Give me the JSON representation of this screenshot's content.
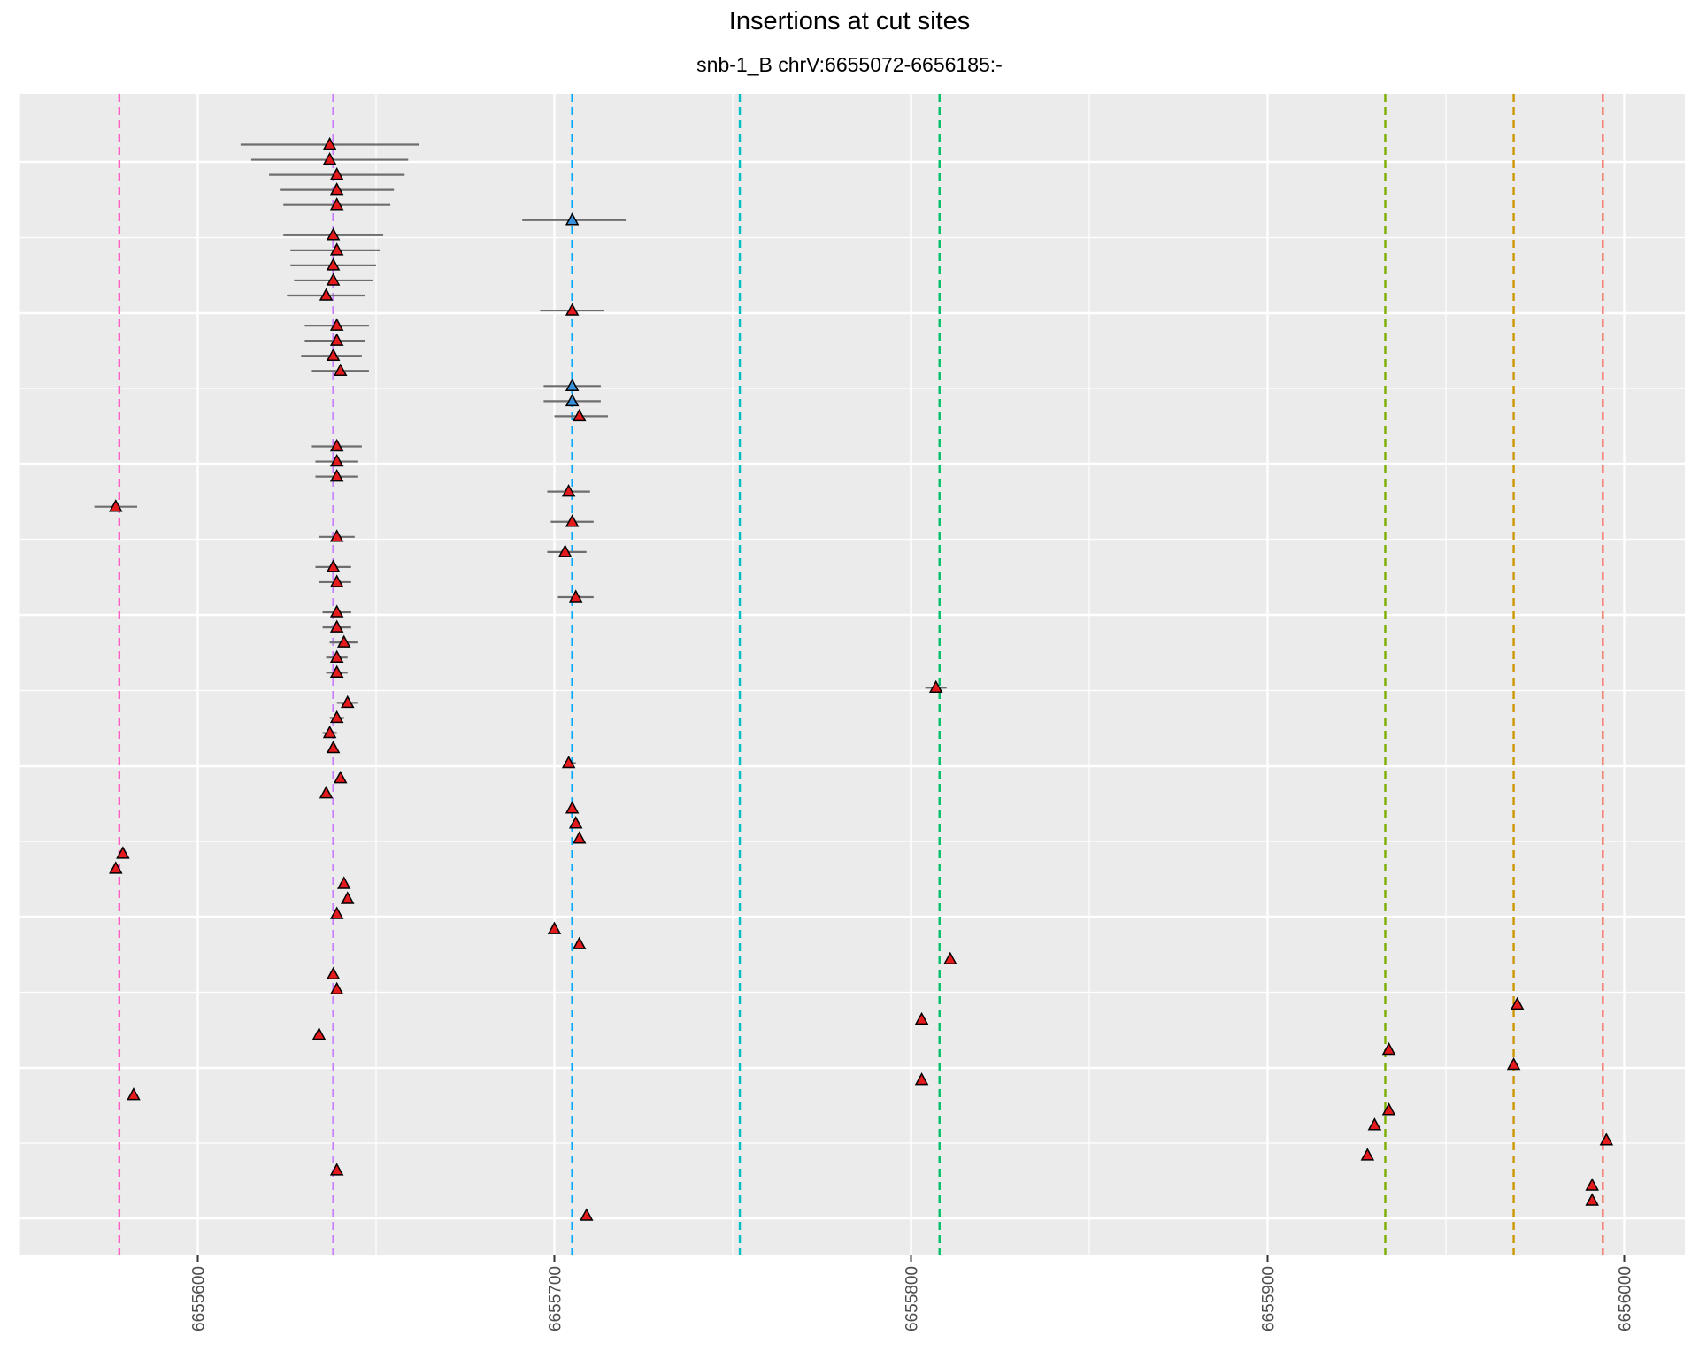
{
  "chart_data": {
    "type": "scatter",
    "title": "Insertions at cut sites",
    "subtitle": "snb-1_B chrV:6655072-6656185:-",
    "xlabel": "",
    "ylabel": "",
    "xlim": [
      6655550,
      6656017
    ],
    "x_ticks": [
      "6655600",
      "6655700",
      "6655800",
      "6655900",
      "6656000"
    ],
    "grid": true,
    "legend": "none",
    "panel_background": "#ebebeb",
    "grid_color": "#ffffff",
    "cut_sites": [
      {
        "x": 6655578,
        "color": "#ff61c3"
      },
      {
        "x": 6655638,
        "color": "#c77cff"
      },
      {
        "x": 6655705,
        "color": "#00a9ff"
      },
      {
        "x": 6655752,
        "color": "#00bfc4"
      },
      {
        "x": 6655808,
        "color": "#00be67"
      },
      {
        "x": 6655933,
        "color": "#7cae00"
      },
      {
        "x": 6655969,
        "color": "#cd9600"
      },
      {
        "x": 6655994,
        "color": "#f8766d"
      }
    ],
    "points": [
      {
        "row": 1,
        "x": 6655637,
        "lo": 6655612,
        "hi": 6655662,
        "color": "#e41a1c"
      },
      {
        "row": 2,
        "x": 6655637,
        "lo": 6655615,
        "hi": 6655659,
        "color": "#e41a1c"
      },
      {
        "row": 3,
        "x": 6655639,
        "lo": 6655620,
        "hi": 6655658,
        "color": "#e41a1c"
      },
      {
        "row": 4,
        "x": 6655639,
        "lo": 6655623,
        "hi": 6655655,
        "color": "#e41a1c"
      },
      {
        "row": 5,
        "x": 6655639,
        "lo": 6655624,
        "hi": 6655654,
        "color": "#e41a1c"
      },
      {
        "row": 6,
        "x": 6655705,
        "lo": 6655691,
        "hi": 6655720,
        "color": "#3a8fd9"
      },
      {
        "row": 7,
        "x": 6655638,
        "lo": 6655624,
        "hi": 6655652,
        "color": "#e41a1c"
      },
      {
        "row": 8,
        "x": 6655639,
        "lo": 6655626,
        "hi": 6655651,
        "color": "#e41a1c"
      },
      {
        "row": 9,
        "x": 6655638,
        "lo": 6655626,
        "hi": 6655650,
        "color": "#e41a1c"
      },
      {
        "row": 10,
        "x": 6655638,
        "lo": 6655627,
        "hi": 6655649,
        "color": "#e41a1c"
      },
      {
        "row": 11,
        "x": 6655636,
        "lo": 6655625,
        "hi": 6655647,
        "color": "#e41a1c"
      },
      {
        "row": 12,
        "x": 6655705,
        "lo": 6655696,
        "hi": 6655714,
        "color": "#e41a1c"
      },
      {
        "row": 13,
        "x": 6655639,
        "lo": 6655630,
        "hi": 6655648,
        "color": "#e41a1c"
      },
      {
        "row": 14,
        "x": 6655639,
        "lo": 6655630,
        "hi": 6655647,
        "color": "#e41a1c"
      },
      {
        "row": 15,
        "x": 6655638,
        "lo": 6655629,
        "hi": 6655646,
        "color": "#e41a1c"
      },
      {
        "row": 16,
        "x": 6655640,
        "lo": 6655632,
        "hi": 6655648,
        "color": "#e41a1c"
      },
      {
        "row": 17,
        "x": 6655705,
        "lo": 6655697,
        "hi": 6655713,
        "color": "#3a8fd9"
      },
      {
        "row": 18,
        "x": 6655705,
        "lo": 6655697,
        "hi": 6655713,
        "color": "#3a8fd9"
      },
      {
        "row": 19,
        "x": 6655707,
        "lo": 6655700,
        "hi": 6655715,
        "color": "#e41a1c"
      },
      {
        "row": 21,
        "x": 6655639,
        "lo": 6655632,
        "hi": 6655646,
        "color": "#e41a1c"
      },
      {
        "row": 22,
        "x": 6655639,
        "lo": 6655633,
        "hi": 6655645,
        "color": "#e41a1c"
      },
      {
        "row": 23,
        "x": 6655639,
        "lo": 6655633,
        "hi": 6655645,
        "color": "#e41a1c"
      },
      {
        "row": 24,
        "x": 6655704,
        "lo": 6655698,
        "hi": 6655710,
        "color": "#e41a1c"
      },
      {
        "row": 25,
        "x": 6655577,
        "lo": 6655571,
        "hi": 6655583,
        "color": "#e41a1c"
      },
      {
        "row": 26,
        "x": 6655705,
        "lo": 6655699,
        "hi": 6655711,
        "color": "#e41a1c"
      },
      {
        "row": 27,
        "x": 6655639,
        "lo": 6655634,
        "hi": 6655644,
        "color": "#e41a1c"
      },
      {
        "row": 28,
        "x": 6655703,
        "lo": 6655698,
        "hi": 6655709,
        "color": "#e41a1c"
      },
      {
        "row": 29,
        "x": 6655638,
        "lo": 6655633,
        "hi": 6655643,
        "color": "#e41a1c"
      },
      {
        "row": 30,
        "x": 6655639,
        "lo": 6655634,
        "hi": 6655643,
        "color": "#e41a1c"
      },
      {
        "row": 31,
        "x": 6655706,
        "lo": 6655701,
        "hi": 6655711,
        "color": "#e41a1c"
      },
      {
        "row": 32,
        "x": 6655639,
        "lo": 6655635,
        "hi": 6655643,
        "color": "#e41a1c"
      },
      {
        "row": 33,
        "x": 6655639,
        "lo": 6655635,
        "hi": 6655643,
        "color": "#e41a1c"
      },
      {
        "row": 34,
        "x": 6655641,
        "lo": 6655637,
        "hi": 6655645,
        "color": "#e41a1c"
      },
      {
        "row": 35,
        "x": 6655639,
        "lo": 6655636,
        "hi": 6655642,
        "color": "#e41a1c"
      },
      {
        "row": 36,
        "x": 6655639,
        "lo": 6655636,
        "hi": 6655642,
        "color": "#e41a1c"
      },
      {
        "row": 37,
        "x": 6655807,
        "lo": 6655804,
        "hi": 6655810,
        "color": "#e41a1c"
      },
      {
        "row": 38,
        "x": 6655642,
        "lo": 6655639,
        "hi": 6655645,
        "color": "#e41a1c"
      },
      {
        "row": 39,
        "x": 6655639,
        "lo": 6655637,
        "hi": 6655641,
        "color": "#e41a1c"
      },
      {
        "row": 40,
        "x": 6655637,
        "lo": 6655635,
        "hi": 6655639,
        "color": "#e41a1c"
      },
      {
        "row": 41,
        "x": 6655638,
        "lo": 6655637,
        "hi": 6655639,
        "color": "#e41a1c"
      },
      {
        "row": 42,
        "x": 6655704,
        "lo": 6655703,
        "hi": 6655706,
        "color": "#e41a1c"
      },
      {
        "row": 43,
        "x": 6655640,
        "color": "#e41a1c"
      },
      {
        "row": 44,
        "x": 6655636,
        "color": "#e41a1c"
      },
      {
        "row": 45,
        "x": 6655705,
        "color": "#e41a1c"
      },
      {
        "row": 46,
        "x": 6655706,
        "color": "#e41a1c"
      },
      {
        "row": 47,
        "x": 6655707,
        "color": "#e41a1c"
      },
      {
        "row": 48,
        "x": 6655579,
        "color": "#e41a1c"
      },
      {
        "row": 49,
        "x": 6655577,
        "color": "#e41a1c"
      },
      {
        "row": 50,
        "x": 6655641,
        "color": "#e41a1c"
      },
      {
        "row": 51,
        "x": 6655642,
        "color": "#e41a1c"
      },
      {
        "row": 52,
        "x": 6655639,
        "color": "#e41a1c"
      },
      {
        "row": 53,
        "x": 6655700,
        "color": "#e41a1c"
      },
      {
        "row": 54,
        "x": 6655707,
        "color": "#e41a1c"
      },
      {
        "row": 55,
        "x": 6655811,
        "color": "#e41a1c"
      },
      {
        "row": 56,
        "x": 6655638,
        "color": "#e41a1c"
      },
      {
        "row": 57,
        "x": 6655639,
        "color": "#e41a1c"
      },
      {
        "row": 58,
        "x": 6655970,
        "color": "#e41a1c"
      },
      {
        "row": 59,
        "x": 6655803,
        "color": "#e41a1c"
      },
      {
        "row": 60,
        "x": 6655634,
        "color": "#e41a1c"
      },
      {
        "row": 61,
        "x": 6655934,
        "color": "#e41a1c"
      },
      {
        "row": 62,
        "x": 6655969,
        "color": "#e41a1c"
      },
      {
        "row": 63,
        "x": 6655803,
        "color": "#e41a1c"
      },
      {
        "row": 64,
        "x": 6655582,
        "color": "#e41a1c"
      },
      {
        "row": 65,
        "x": 6655934,
        "color": "#e41a1c"
      },
      {
        "row": 66,
        "x": 6655930,
        "color": "#e41a1c"
      },
      {
        "row": 67,
        "x": 6655995,
        "color": "#e41a1c"
      },
      {
        "row": 68,
        "x": 6655928,
        "color": "#e41a1c"
      },
      {
        "row": 69,
        "x": 6655639,
        "color": "#e41a1c"
      },
      {
        "row": 70,
        "x": 6655991,
        "color": "#e41a1c"
      },
      {
        "row": 71,
        "x": 6655991,
        "color": "#e41a1c"
      },
      {
        "row": 72,
        "x": 6655709,
        "color": "#e41a1c"
      }
    ]
  }
}
